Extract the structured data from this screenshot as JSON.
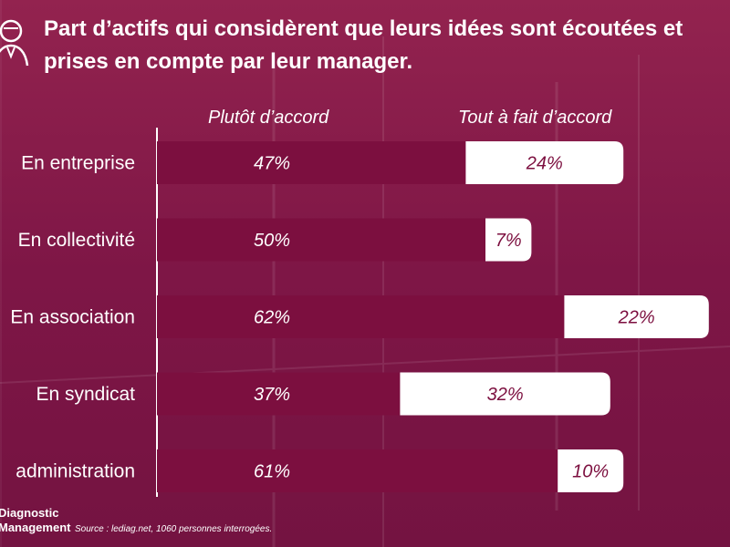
{
  "title": "Part d’actifs qui considèrent que leurs idées sont écoutées et\nprises en compte par leur manager.",
  "legend": [
    "Plutôt d’accord",
    "Tout à fait d’accord"
  ],
  "footer": {
    "logo_line1": "Diagnostic",
    "logo_line2": "Management",
    "source": "Source : lediag.net, 1060 personnes interrogées."
  },
  "colors": {
    "background": "#8c1b4e",
    "bar_primary": "#7c0f3f",
    "bar_secondary": "#ffffff",
    "text_on_white": "#7c0f3f"
  },
  "icon": "person-icon",
  "chart_data": {
    "type": "bar",
    "orientation": "horizontal",
    "stacked": true,
    "categories": [
      "En entreprise",
      "En collectivité",
      "En association",
      "En syndicat",
      "administration"
    ],
    "series": [
      {
        "name": "Plutôt d’accord",
        "values": [
          47,
          50,
          62,
          37,
          61
        ]
      },
      {
        "name": "Tout à fait d’accord",
        "values": [
          24,
          7,
          22,
          32,
          10
        ]
      }
    ],
    "value_labels": {
      "primary": [
        "47%",
        "50%",
        "62%",
        "37%",
        "61%"
      ],
      "secondary": [
        "24%",
        "7%",
        "22%",
        "32%",
        "10%"
      ]
    },
    "xlim": [
      0,
      100
    ],
    "grid": false,
    "legend_position": "top"
  }
}
